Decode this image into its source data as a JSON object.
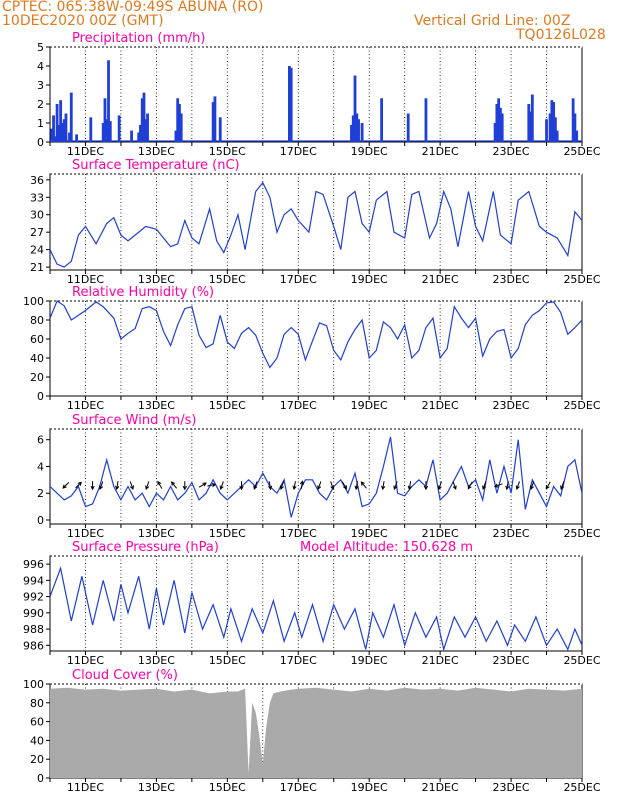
{
  "header": {
    "line1_left": "CPTEC:   065:38W-09:49S   ABUNA (RO)",
    "line2_left": "10DEC2020 00Z (GMT)",
    "line2_right": "Vertical Grid Line: 00Z",
    "line3_right": "TQ0126L028"
  },
  "colors": {
    "header": "#e07a1f",
    "title": "#ff00aa",
    "series": "#1f3fd6",
    "cloud": "#aaaaaa",
    "arrow": "#000000"
  },
  "x_ticks": [
    "11DEC",
    "13DEC",
    "15DEC",
    "17DEC",
    "19DEC",
    "21DEC",
    "23DEC",
    "25DEC"
  ],
  "chart_data": [
    {
      "id": "precip",
      "type": "bar",
      "title": "Precipitation (mm/h)",
      "ylim": [
        0,
        5
      ],
      "yticks": [
        0,
        1,
        2,
        3,
        4,
        5
      ],
      "xlim": [
        10,
        25
      ],
      "x": [
        10.05,
        10.1,
        10.15,
        10.2,
        10.25,
        10.3,
        10.35,
        10.4,
        10.45,
        10.55,
        10.6,
        10.75,
        11.15,
        11.5,
        11.55,
        11.6,
        11.65,
        11.7,
        11.95,
        12.3,
        12.5,
        12.55,
        12.6,
        12.65,
        12.7,
        12.75,
        13.55,
        13.6,
        13.65,
        13.7,
        14.6,
        14.65,
        14.8,
        16.75,
        16.8,
        18.5,
        18.55,
        18.6,
        18.65,
        18.7,
        18.8,
        19.35,
        20.1,
        20.6,
        22.55,
        22.6,
        22.65,
        22.7,
        22.75,
        23.5,
        23.55,
        23.6,
        24.0,
        24.1,
        24.15,
        24.2,
        24.25,
        24.3,
        24.75,
        24.8,
        24.85
      ],
      "values": [
        0.7,
        1.4,
        0.3,
        2.0,
        0.9,
        2.2,
        1.0,
        1.2,
        1.5,
        0.5,
        2.6,
        0.4,
        1.3,
        1.0,
        2.3,
        1.2,
        4.3,
        1.1,
        1.4,
        0.6,
        0.5,
        0.9,
        2.3,
        2.6,
        1.2,
        1.5,
        0.6,
        2.3,
        2.0,
        1.5,
        2.1,
        2.4,
        1.3,
        4.0,
        3.9,
        0.9,
        1.4,
        3.5,
        1.5,
        1.2,
        1.0,
        2.3,
        1.5,
        2.3,
        1.0,
        2.0,
        2.3,
        1.8,
        1.5,
        2.0,
        1.6,
        2.5,
        1.2,
        1.5,
        2.2,
        2.1,
        1.3,
        0.6,
        2.3,
        1.5,
        0.6
      ]
    },
    {
      "id": "temp",
      "type": "line",
      "title": "Surface Temperature (nC)",
      "ylim": [
        20.5,
        37
      ],
      "yticks": [
        21,
        24,
        27,
        30,
        33,
        36
      ],
      "xlim": [
        10,
        25
      ],
      "x": [
        10.0,
        10.2,
        10.4,
        10.6,
        10.8,
        11.0,
        11.3,
        11.6,
        11.8,
        12.0,
        12.2,
        12.4,
        12.7,
        13.0,
        13.2,
        13.4,
        13.6,
        13.8,
        14.0,
        14.2,
        14.5,
        14.7,
        14.9,
        15.1,
        15.3,
        15.5,
        15.8,
        16.0,
        16.2,
        16.4,
        16.6,
        16.8,
        17.0,
        17.3,
        17.5,
        17.7,
        18.0,
        18.2,
        18.4,
        18.6,
        18.8,
        19.0,
        19.2,
        19.5,
        19.7,
        20.0,
        20.2,
        20.4,
        20.7,
        20.9,
        21.1,
        21.3,
        21.5,
        21.8,
        22.0,
        22.2,
        22.5,
        22.7,
        23.0,
        23.2,
        23.5,
        23.8,
        24.0,
        24.3,
        24.6,
        24.8,
        25.0
      ],
      "y": [
        24.0,
        21.5,
        21.0,
        22.0,
        26.5,
        28.0,
        25.0,
        28.5,
        29.5,
        26.5,
        25.5,
        26.5,
        28.0,
        27.5,
        26.0,
        24.5,
        25.0,
        29.0,
        26.0,
        25.0,
        31.0,
        25.5,
        23.5,
        26.5,
        30.0,
        24.0,
        34.0,
        35.5,
        33.0,
        27.0,
        30.0,
        31.0,
        29.0,
        27.0,
        34.0,
        33.5,
        28.0,
        24.0,
        33.0,
        34.0,
        28.5,
        27.0,
        32.5,
        34.0,
        27.0,
        26.0,
        33.5,
        34.0,
        26.0,
        28.5,
        34.0,
        31.0,
        24.5,
        34.0,
        28.0,
        25.5,
        34.0,
        26.5,
        25.0,
        32.5,
        34.0,
        28.0,
        27.0,
        26.0,
        23.0,
        30.5,
        29.0
      ]
    },
    {
      "id": "rh",
      "type": "line",
      "title": "Relative Humidity (%)",
      "ylim": [
        0,
        100
      ],
      "yticks": [
        0,
        20,
        40,
        60,
        80,
        100
      ],
      "xlim": [
        10,
        25
      ],
      "x": [
        10.0,
        10.2,
        10.4,
        10.6,
        10.8,
        11.0,
        11.3,
        11.5,
        11.8,
        12.0,
        12.2,
        12.4,
        12.6,
        12.8,
        13.0,
        13.2,
        13.4,
        13.6,
        13.8,
        14.0,
        14.2,
        14.4,
        14.6,
        14.8,
        15.0,
        15.2,
        15.4,
        15.6,
        15.8,
        16.0,
        16.2,
        16.4,
        16.6,
        16.8,
        17.0,
        17.2,
        17.4,
        17.6,
        17.8,
        18.0,
        18.2,
        18.4,
        18.6,
        18.8,
        19.0,
        19.2,
        19.4,
        19.6,
        19.8,
        20.0,
        20.2,
        20.4,
        20.6,
        20.8,
        21.0,
        21.2,
        21.4,
        21.6,
        21.8,
        22.0,
        22.2,
        22.4,
        22.6,
        22.8,
        23.0,
        23.2,
        23.4,
        23.6,
        23.8,
        24.0,
        24.2,
        24.4,
        24.6,
        24.8,
        25.0
      ],
      "y": [
        82,
        100,
        95,
        80,
        85,
        90,
        99,
        94,
        82,
        60,
        66,
        71,
        92,
        94,
        90,
        68,
        53,
        75,
        92,
        94,
        64,
        51,
        55,
        85,
        57,
        50,
        66,
        72,
        64,
        45,
        30,
        40,
        65,
        72,
        65,
        38,
        58,
        77,
        74,
        48,
        38,
        57,
        70,
        80,
        40,
        48,
        78,
        72,
        60,
        75,
        40,
        48,
        72,
        82,
        40,
        50,
        94,
        82,
        72,
        82,
        42,
        60,
        68,
        70,
        40,
        50,
        75,
        85,
        90,
        98,
        99,
        88,
        65,
        72,
        80
      ]
    },
    {
      "id": "wind",
      "type": "line",
      "title": "Surface Wind (m/s)",
      "ylim": [
        -0.3,
        6.8
      ],
      "yticks": [
        0,
        2,
        4,
        6
      ],
      "xlim": [
        10,
        25
      ],
      "x": [
        10.0,
        10.2,
        10.4,
        10.6,
        10.8,
        11.0,
        11.2,
        11.4,
        11.6,
        11.8,
        12.0,
        12.2,
        12.4,
        12.6,
        12.8,
        13.0,
        13.2,
        13.4,
        13.6,
        13.8,
        14.0,
        14.2,
        14.4,
        14.6,
        14.8,
        15.0,
        15.2,
        15.4,
        15.6,
        15.8,
        16.0,
        16.2,
        16.4,
        16.6,
        16.8,
        17.0,
        17.2,
        17.4,
        17.6,
        17.8,
        18.0,
        18.2,
        18.4,
        18.6,
        18.8,
        19.0,
        19.2,
        19.4,
        19.6,
        19.8,
        20.0,
        20.2,
        20.4,
        20.6,
        20.8,
        21.0,
        21.2,
        21.4,
        21.6,
        21.8,
        22.0,
        22.2,
        22.4,
        22.6,
        22.8,
        23.0,
        23.2,
        23.4,
        23.6,
        23.8,
        24.0,
        24.2,
        24.4,
        24.6,
        24.8,
        25.0
      ],
      "y": [
        2.5,
        2.0,
        1.5,
        1.8,
        2.5,
        1.0,
        1.2,
        2.5,
        4.5,
        2.5,
        1.5,
        2.5,
        1.5,
        2.0,
        1.0,
        2.0,
        1.5,
        2.5,
        1.5,
        2.0,
        2.8,
        1.5,
        2.0,
        3.0,
        2.0,
        1.5,
        2.0,
        2.5,
        3.0,
        2.5,
        3.5,
        2.5,
        2.0,
        3.0,
        0.2,
        2.0,
        3.0,
        3.0,
        2.0,
        1.5,
        2.5,
        3.0,
        2.0,
        3.5,
        1.0,
        1.2,
        2.0,
        4.0,
        6.2,
        2.0,
        1.8,
        2.5,
        3.0,
        2.5,
        4.5,
        1.5,
        2.0,
        3.0,
        4.0,
        2.5,
        3.0,
        1.5,
        4.5,
        2.0,
        4.0,
        2.0,
        6.0,
        0.8,
        3.0,
        2.0,
        1.0,
        2.5,
        1.8,
        4.0,
        4.5,
        2.0
      ]
    },
    {
      "id": "pressure",
      "type": "line",
      "title": "Surface Pressure (hPa)",
      "annotation": "Model Altitude: 150.628 m",
      "ylim": [
        985.3,
        997
      ],
      "yticks": [
        986,
        988,
        990,
        992,
        994,
        996
      ],
      "xlim": [
        10,
        25
      ],
      "x": [
        10.0,
        10.3,
        10.6,
        10.9,
        11.2,
        11.5,
        11.8,
        12.0,
        12.2,
        12.5,
        12.8,
        13.0,
        13.2,
        13.5,
        13.8,
        14.0,
        14.3,
        14.6,
        14.9,
        15.1,
        15.4,
        15.7,
        16.0,
        16.3,
        16.6,
        16.9,
        17.1,
        17.4,
        17.7,
        18.0,
        18.3,
        18.6,
        18.9,
        19.1,
        19.4,
        19.7,
        20.0,
        20.3,
        20.6,
        20.9,
        21.1,
        21.4,
        21.7,
        22.0,
        22.3,
        22.6,
        22.9,
        23.1,
        23.4,
        23.7,
        24.0,
        24.3,
        24.6,
        24.8,
        25.0
      ],
      "y": [
        992,
        995.5,
        989,
        994.5,
        988.5,
        994,
        989,
        993.5,
        990,
        994.5,
        988,
        993,
        988.5,
        994,
        987.5,
        992.5,
        988,
        991,
        987,
        990.5,
        986.5,
        990.5,
        987.5,
        991.5,
        986.5,
        990,
        987,
        991,
        986.5,
        991,
        988,
        990.5,
        985.5,
        990,
        987,
        991,
        986,
        990,
        987,
        989.5,
        985.5,
        989.5,
        987,
        989.5,
        986.5,
        989,
        986,
        988.5,
        986.5,
        989.5,
        986,
        988,
        985.5,
        988,
        986
      ]
    },
    {
      "id": "cloud",
      "type": "bar",
      "title": "Cloud Cover (%)",
      "ylim": [
        0,
        100
      ],
      "yticks": [
        0,
        20,
        40,
        60,
        80,
        100
      ],
      "xlim": [
        10,
        25
      ],
      "x": [
        10.0,
        10.5,
        11.0,
        11.5,
        12.0,
        12.5,
        13.0,
        13.5,
        14.0,
        14.5,
        15.0,
        15.3,
        15.5,
        15.6,
        15.7,
        15.8,
        15.9,
        16.0,
        16.1,
        16.2,
        16.3,
        16.5,
        16.8,
        17.0,
        17.5,
        18.0,
        18.5,
        19.0,
        19.5,
        20.0,
        20.5,
        21.0,
        21.5,
        22.0,
        22.5,
        23.0,
        23.5,
        24.0,
        24.5,
        25.0
      ],
      "values": [
        95,
        96,
        94,
        95,
        93,
        94,
        95,
        92,
        94,
        90,
        92,
        92,
        95,
        5,
        80,
        70,
        45,
        15,
        55,
        80,
        90,
        92,
        94,
        95,
        96,
        94,
        92,
        95,
        93,
        96,
        94,
        95,
        93,
        96,
        94,
        92,
        95,
        94,
        93,
        95
      ]
    }
  ],
  "wind_barbs": [
    {
      "x": 10.45,
      "dir": 225
    },
    {
      "x": 10.8,
      "dir": 45
    },
    {
      "x": 11.2,
      "dir": 180
    },
    {
      "x": 11.45,
      "dir": 200
    },
    {
      "x": 11.9,
      "dir": 190
    },
    {
      "x": 12.3,
      "dir": 160
    },
    {
      "x": 12.75,
      "dir": 200
    },
    {
      "x": 13.1,
      "dir": 330
    },
    {
      "x": 13.5,
      "dir": 320
    },
    {
      "x": 13.8,
      "dir": 180
    },
    {
      "x": 14.3,
      "dir": 60
    },
    {
      "x": 14.55,
      "dir": 80
    },
    {
      "x": 14.85,
      "dir": 200
    },
    {
      "x": 15.4,
      "dir": 180
    },
    {
      "x": 15.8,
      "dir": 200
    },
    {
      "x": 16.2,
      "dir": 170
    },
    {
      "x": 16.55,
      "dir": 200
    },
    {
      "x": 16.9,
      "dir": 190
    },
    {
      "x": 17.1,
      "dir": 10
    },
    {
      "x": 17.6,
      "dir": 200
    },
    {
      "x": 17.95,
      "dir": 160
    },
    {
      "x": 18.3,
      "dir": 150
    },
    {
      "x": 18.65,
      "dir": 190
    },
    {
      "x": 18.85,
      "dir": 320
    },
    {
      "x": 19.4,
      "dir": 190
    },
    {
      "x": 19.75,
      "dir": 200
    },
    {
      "x": 20.15,
      "dir": 190
    },
    {
      "x": 20.6,
      "dir": 180
    },
    {
      "x": 21.0,
      "dir": 200
    },
    {
      "x": 21.4,
      "dir": 160
    },
    {
      "x": 21.85,
      "dir": 210
    },
    {
      "x": 22.25,
      "dir": 200
    },
    {
      "x": 22.65,
      "dir": 250
    },
    {
      "x": 22.9,
      "dir": 190
    },
    {
      "x": 23.2,
      "dir": 200
    },
    {
      "x": 23.6,
      "dir": 200
    },
    {
      "x": 24.05,
      "dir": 210
    },
    {
      "x": 24.45,
      "dir": 200
    }
  ]
}
